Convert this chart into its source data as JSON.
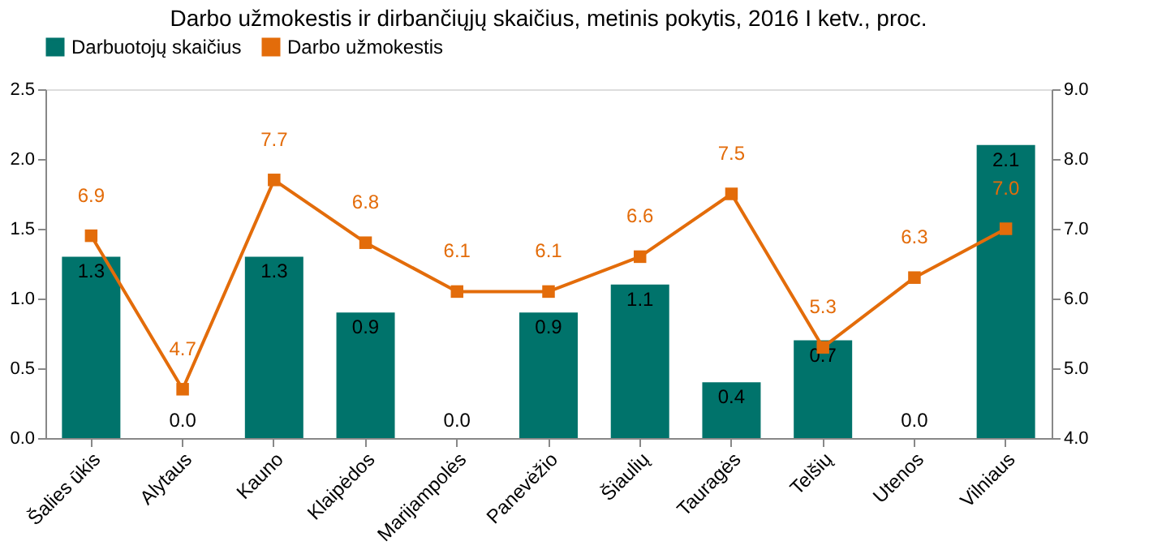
{
  "chart_data": {
    "type": "bar",
    "title": "Darbo užmokestis ir dirbančiųjų  skaičius, metinis pokytis, 2016 I ketv., proc.",
    "categories": [
      "Šalies ūkis",
      "Alytaus",
      "Kauno",
      "Klaipėdos",
      "Marijampolės",
      "Panevėžio",
      "Šiaulių",
      "Tauragės",
      "Telšių",
      "Utenos",
      "Vilniaus"
    ],
    "series": [
      {
        "name": "Darbuotojų skaičius",
        "color": "#00736b",
        "values": [
          1.3,
          0.0,
          1.3,
          0.9,
          0.0,
          0.9,
          1.1,
          0.4,
          0.7,
          0.0,
          2.1
        ],
        "value_labels": [
          "1.3",
          "0.0",
          "1.3",
          "0.9",
          "0.0",
          "0.9",
          "1.1",
          "0.4",
          "0.7",
          "0.0",
          "2.1"
        ]
      },
      {
        "name": "Darbo užmokestis",
        "type": "line",
        "axis": "y2",
        "color": "#e36c0a",
        "marker": "square",
        "values": [
          6.9,
          4.7,
          7.7,
          6.8,
          6.1,
          6.1,
          6.6,
          7.5,
          5.3,
          6.3,
          7.0
        ],
        "value_labels": [
          "6.9",
          "4.7",
          "7.7",
          "6.8",
          "6.1",
          "6.1",
          "6.6",
          "7.5",
          "5.3",
          "6.3",
          "7.0"
        ]
      }
    ],
    "ylim": [
      0,
      2.5
    ],
    "yticks": [
      {
        "value": 0,
        "label": "0.0"
      },
      0.5,
      {
        "value": 1,
        "label": "1.0"
      },
      1.5,
      {
        "value": 2,
        "label": "2.0"
      },
      2.5
    ],
    "y2lim": [
      4,
      9
    ],
    "y2ticks": [
      {
        "value": 4,
        "label": "4.0"
      },
      {
        "value": 5,
        "label": "5.0"
      },
      {
        "value": 6,
        "label": "6.0"
      },
      {
        "value": 7,
        "label": "7.0"
      },
      {
        "value": 8,
        "label": "8.0"
      },
      {
        "value": 9,
        "label": "9.0"
      }
    ],
    "legend": "top",
    "grid": false
  }
}
